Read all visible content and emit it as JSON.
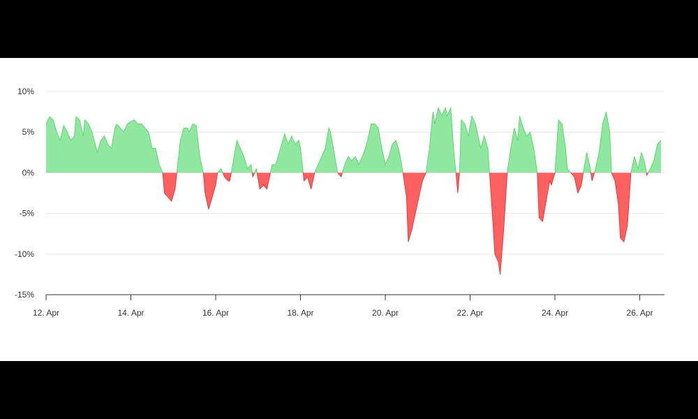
{
  "chart_data": {
    "type": "area",
    "title": "",
    "xlabel": "",
    "ylabel": "",
    "x_ticks": [
      "12. Apr",
      "14. Apr",
      "16. Apr",
      "18. Apr",
      "20. Apr",
      "22. Apr",
      "24. Apr",
      "26. Apr"
    ],
    "y_ticks": [
      "10%",
      "5%",
      "0%",
      "-5%",
      "-10%",
      "-15%"
    ],
    "ylim": [
      -15,
      10
    ],
    "xlim": [
      "2024-04-12",
      "2024-04-26T14:00"
    ],
    "grid": true,
    "legend": "none",
    "colors": {
      "positive": "#90e8a0",
      "positive_line": "#5cd66f",
      "negative": "#ff6060",
      "negative_line": "#e23b3b"
    },
    "series": [
      {
        "points": [
          [
            "2024-04-12T00:00",
            6.0
          ],
          [
            "2024-04-12T02:00",
            6.9
          ],
          [
            "2024-04-12T04:00",
            6.5
          ],
          [
            "2024-04-12T06:00",
            5.0
          ],
          [
            "2024-04-12T08:00",
            4.0
          ],
          [
            "2024-04-12T10:00",
            5.8
          ],
          [
            "2024-04-12T12:00",
            5.0
          ],
          [
            "2024-04-12T14:00",
            4.0
          ],
          [
            "2024-04-12T16:00",
            4.5
          ],
          [
            "2024-04-12T17:00",
            6.9
          ],
          [
            "2024-04-12T19:00",
            6.5
          ],
          [
            "2024-04-12T21:00",
            4.5
          ],
          [
            "2024-04-12T22:00",
            6.5
          ],
          [
            "2024-04-13T00:00",
            6.0
          ],
          [
            "2024-04-13T02:00",
            5.0
          ],
          [
            "2024-04-13T05:00",
            2.5
          ],
          [
            "2024-04-13T07:00",
            4.0
          ],
          [
            "2024-04-13T09:00",
            4.5
          ],
          [
            "2024-04-13T11:00",
            3.5
          ],
          [
            "2024-04-13T13:00",
            3.0
          ],
          [
            "2024-04-13T15:00",
            5.5
          ],
          [
            "2024-04-13T16:00",
            6.0
          ],
          [
            "2024-04-13T18:00",
            5.5
          ],
          [
            "2024-04-13T20:00",
            5.0
          ],
          [
            "2024-04-13T22:00",
            6.0
          ],
          [
            "2024-04-14T00:00",
            6.3
          ],
          [
            "2024-04-14T02:00",
            6.5
          ],
          [
            "2024-04-14T04:00",
            6.0
          ],
          [
            "2024-04-14T06:00",
            6.0
          ],
          [
            "2024-04-14T08:00",
            5.5
          ],
          [
            "2024-04-14T10:00",
            5.0
          ],
          [
            "2024-04-14T12:00",
            3.0
          ],
          [
            "2024-04-14T14:00",
            3.0
          ],
          [
            "2024-04-14T16:00",
            1.0
          ],
          [
            "2024-04-14T18:00",
            0.0
          ],
          [
            "2024-04-14T19:00",
            -2.5
          ],
          [
            "2024-04-14T21:00",
            -3.0
          ],
          [
            "2024-04-14T23:00",
            -3.5
          ],
          [
            "2024-04-15T01:00",
            -2.0
          ],
          [
            "2024-04-15T02:00",
            0.0
          ],
          [
            "2024-04-15T04:00",
            4.0
          ],
          [
            "2024-04-15T06:00",
            5.5
          ],
          [
            "2024-04-15T08:00",
            5.5
          ],
          [
            "2024-04-15T09:00",
            5.0
          ],
          [
            "2024-04-15T11:00",
            6.0
          ],
          [
            "2024-04-15T13:00",
            5.8
          ],
          [
            "2024-04-15T15:00",
            2.0
          ],
          [
            "2024-04-15T17:00",
            0.0
          ],
          [
            "2024-04-15T18:00",
            -2.5
          ],
          [
            "2024-04-15T20:00",
            -4.5
          ],
          [
            "2024-04-15T22:00",
            -3.0
          ],
          [
            "2024-04-16T00:00",
            -1.5
          ],
          [
            "2024-04-16T01:00",
            0.0
          ],
          [
            "2024-04-16T03:00",
            0.5
          ],
          [
            "2024-04-16T05:00",
            -0.5
          ],
          [
            "2024-04-16T07:00",
            -1.0
          ],
          [
            "2024-04-16T08:00",
            -1.0
          ],
          [
            "2024-04-16T10:00",
            1.5
          ],
          [
            "2024-04-16T12:00",
            4.0
          ],
          [
            "2024-04-16T14:00",
            3.0
          ],
          [
            "2024-04-16T16:00",
            2.0
          ],
          [
            "2024-04-16T18:00",
            0.5
          ],
          [
            "2024-04-16T20:00",
            1.0
          ],
          [
            "2024-04-16T21:00",
            -0.5
          ],
          [
            "2024-04-16T23:00",
            0.5
          ],
          [
            "2024-04-17T01:00",
            -2.0
          ],
          [
            "2024-04-17T03:00",
            -1.5
          ],
          [
            "2024-04-17T05:00",
            -2.0
          ],
          [
            "2024-04-17T06:00",
            -1.0
          ],
          [
            "2024-04-17T08:00",
            1.0
          ],
          [
            "2024-04-17T10:00",
            1.0
          ],
          [
            "2024-04-17T12:00",
            2.5
          ],
          [
            "2024-04-17T14:00",
            4.0
          ],
          [
            "2024-04-17T15:00",
            4.8
          ],
          [
            "2024-04-17T17:00",
            3.5
          ],
          [
            "2024-04-17T19:00",
            4.5
          ],
          [
            "2024-04-17T21:00",
            3.5
          ],
          [
            "2024-04-17T23:00",
            4.0
          ],
          [
            "2024-04-18T00:00",
            3.0
          ],
          [
            "2024-04-18T02:00",
            -1.0
          ],
          [
            "2024-04-18T04:00",
            -0.5
          ],
          [
            "2024-04-18T06:00",
            -2.0
          ],
          [
            "2024-04-18T08:00",
            0.0
          ],
          [
            "2024-04-18T10:00",
            1.0
          ],
          [
            "2024-04-18T12:00",
            2.0
          ],
          [
            "2024-04-18T14:00",
            3.0
          ],
          [
            "2024-04-18T16:00",
            5.5
          ],
          [
            "2024-04-18T17:00",
            5.0
          ],
          [
            "2024-04-18T19:00",
            2.5
          ],
          [
            "2024-04-18T21:00",
            0.0
          ],
          [
            "2024-04-18T23:00",
            -0.5
          ],
          [
            "2024-04-19T01:00",
            1.0
          ],
          [
            "2024-04-19T03:00",
            2.0
          ],
          [
            "2024-04-19T05:00",
            1.5
          ],
          [
            "2024-04-19T07:00",
            2.0
          ],
          [
            "2024-04-19T09:00",
            1.0
          ],
          [
            "2024-04-19T10:00",
            1.5
          ],
          [
            "2024-04-19T12:00",
            2.5
          ],
          [
            "2024-04-19T14:00",
            4.0
          ],
          [
            "2024-04-19T16:00",
            6.0
          ],
          [
            "2024-04-19T18:00",
            6.0
          ],
          [
            "2024-04-19T20:00",
            5.5
          ],
          [
            "2024-04-19T22:00",
            3.0
          ],
          [
            "2024-04-20T00:00",
            1.0
          ],
          [
            "2024-04-20T02:00",
            2.0
          ],
          [
            "2024-04-20T04:00",
            3.5
          ],
          [
            "2024-04-20T06:00",
            4.0
          ],
          [
            "2024-04-20T08:00",
            2.5
          ],
          [
            "2024-04-20T10:00",
            0.0
          ],
          [
            "2024-04-20T12:00",
            -3.0
          ],
          [
            "2024-04-20T13:00",
            -8.5
          ],
          [
            "2024-04-20T15:00",
            -7.0
          ],
          [
            "2024-04-20T17:00",
            -5.0
          ],
          [
            "2024-04-20T19:00",
            -3.0
          ],
          [
            "2024-04-20T21:00",
            -1.0
          ],
          [
            "2024-04-20T23:00",
            0.0
          ],
          [
            "2024-04-21T01:00",
            3.0
          ],
          [
            "2024-04-21T03:00",
            7.5
          ],
          [
            "2024-04-21T04:00",
            6.0
          ],
          [
            "2024-04-21T06:00",
            8.0
          ],
          [
            "2024-04-21T08:00",
            7.0
          ],
          [
            "2024-04-21T10:00",
            8.0
          ],
          [
            "2024-04-21T11:00",
            7.0
          ],
          [
            "2024-04-21T13:00",
            8.0
          ],
          [
            "2024-04-21T15:00",
            2.0
          ],
          [
            "2024-04-21T16:00",
            0.0
          ],
          [
            "2024-04-21T17:00",
            -2.5
          ],
          [
            "2024-04-21T18:00",
            0.0
          ],
          [
            "2024-04-21T19:00",
            6.5
          ],
          [
            "2024-04-21T21:00",
            6.0
          ],
          [
            "2024-04-21T23:00",
            4.5
          ],
          [
            "2024-04-22T01:00",
            7.0
          ],
          [
            "2024-04-22T03:00",
            6.0
          ],
          [
            "2024-04-22T05:00",
            4.0
          ],
          [
            "2024-04-22T06:00",
            3.0
          ],
          [
            "2024-04-22T08:00",
            4.5
          ],
          [
            "2024-04-22T10:00",
            3.0
          ],
          [
            "2024-04-22T11:00",
            0.0
          ],
          [
            "2024-04-22T13:00",
            -6.5
          ],
          [
            "2024-04-22T14:00",
            -10.0
          ],
          [
            "2024-04-22T16:00",
            -11.0
          ],
          [
            "2024-04-22T17:00",
            -12.5
          ],
          [
            "2024-04-22T19:00",
            -7.0
          ],
          [
            "2024-04-22T21:00",
            0.0
          ],
          [
            "2024-04-22T23:00",
            3.0
          ],
          [
            "2024-04-23T01:00",
            5.5
          ],
          [
            "2024-04-23T03:00",
            4.0
          ],
          [
            "2024-04-23T04:00",
            7.0
          ],
          [
            "2024-04-23T06:00",
            5.5
          ],
          [
            "2024-04-23T08:00",
            4.5
          ],
          [
            "2024-04-23T10:00",
            5.0
          ],
          [
            "2024-04-23T12:00",
            3.0
          ],
          [
            "2024-04-23T14:00",
            0.0
          ],
          [
            "2024-04-23T15:00",
            -5.5
          ],
          [
            "2024-04-23T17:00",
            -6.0
          ],
          [
            "2024-04-23T19:00",
            -3.5
          ],
          [
            "2024-04-23T21:00",
            -1.0
          ],
          [
            "2024-04-23T22:00",
            -1.5
          ],
          [
            "2024-04-24T00:00",
            0.0
          ],
          [
            "2024-04-24T02:00",
            6.5
          ],
          [
            "2024-04-24T04:00",
            6.0
          ],
          [
            "2024-04-24T06:00",
            3.0
          ],
          [
            "2024-04-24T07:00",
            0.5
          ],
          [
            "2024-04-24T09:00",
            0.0
          ],
          [
            "2024-04-24T11:00",
            -0.5
          ],
          [
            "2024-04-24T13:00",
            -2.5
          ],
          [
            "2024-04-24T15:00",
            -1.5
          ],
          [
            "2024-04-24T16:00",
            0.0
          ],
          [
            "2024-04-24T18:00",
            2.5
          ],
          [
            "2024-04-24T20:00",
            0.5
          ],
          [
            "2024-04-24T21:00",
            -1.0
          ],
          [
            "2024-04-24T23:00",
            0.5
          ],
          [
            "2024-04-25T01:00",
            2.5
          ],
          [
            "2024-04-25T03:00",
            6.0
          ],
          [
            "2024-04-25T05:00",
            7.5
          ],
          [
            "2024-04-25T07:00",
            5.0
          ],
          [
            "2024-04-25T08:00",
            0.0
          ],
          [
            "2024-04-25T10:00",
            -1.0
          ],
          [
            "2024-04-25T12:00",
            -4.0
          ],
          [
            "2024-04-25T13:00",
            -8.0
          ],
          [
            "2024-04-25T15:00",
            -8.5
          ],
          [
            "2024-04-25T17:00",
            -6.5
          ],
          [
            "2024-04-25T19:00",
            0.0
          ],
          [
            "2024-04-25T21:00",
            2.0
          ],
          [
            "2024-04-25T23:00",
            0.5
          ],
          [
            "2024-04-26T01:00",
            2.5
          ],
          [
            "2024-04-26T03:00",
            1.0
          ],
          [
            "2024-04-26T04:00",
            -0.3
          ],
          [
            "2024-04-26T06:00",
            0.5
          ],
          [
            "2024-04-26T08:00",
            1.5
          ],
          [
            "2024-04-26T10:00",
            3.5
          ],
          [
            "2024-04-26T12:00",
            4.0
          ]
        ]
      }
    ]
  }
}
